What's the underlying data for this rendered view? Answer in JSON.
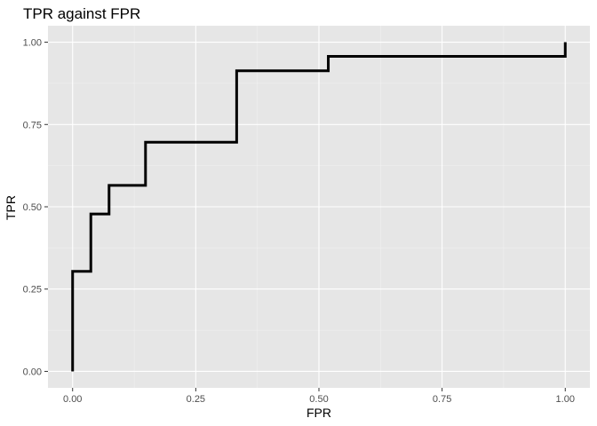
{
  "chart_data": {
    "type": "line",
    "title": "TPR against FPR",
    "xlabel": "FPR",
    "ylabel": "TPR",
    "xlim": [
      -0.05,
      1.05
    ],
    "ylim": [
      -0.05,
      1.05
    ],
    "x_ticks": [
      0,
      0.25,
      0.5,
      0.75,
      1
    ],
    "x_tick_labels": [
      "0.00",
      "0.25",
      "0.50",
      "0.75",
      "1.00"
    ],
    "y_ticks": [
      0,
      0.25,
      0.5,
      0.75,
      1
    ],
    "y_tick_labels": [
      "0.00",
      "0.25",
      "0.50",
      "0.75",
      "1.00"
    ],
    "grid": true,
    "step": true,
    "series": [
      {
        "color": "#000000",
        "points": [
          {
            "x": 0,
            "y": 0
          },
          {
            "x": 0,
            "y": 0.304
          },
          {
            "x": 0.037,
            "y": 0.304
          },
          {
            "x": 0.037,
            "y": 0.478
          },
          {
            "x": 0.074,
            "y": 0.478
          },
          {
            "x": 0.074,
            "y": 0.565
          },
          {
            "x": 0.148,
            "y": 0.565
          },
          {
            "x": 0.148,
            "y": 0.696
          },
          {
            "x": 0.333,
            "y": 0.696
          },
          {
            "x": 0.333,
            "y": 0.913
          },
          {
            "x": 0.519,
            "y": 0.913
          },
          {
            "x": 0.519,
            "y": 0.957
          },
          {
            "x": 1,
            "y": 0.957
          },
          {
            "x": 1,
            "y": 1
          }
        ]
      }
    ]
  }
}
